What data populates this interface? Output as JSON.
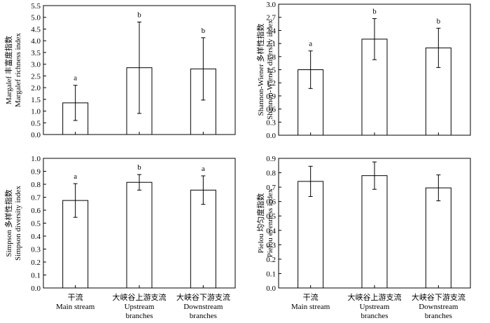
{
  "chart_data": [
    {
      "type": "bar",
      "categories": [
        {
          "zh": "干流",
          "en": [
            "Main stream"
          ]
        },
        {
          "zh": "大峡谷上游支流",
          "en": [
            "Upstream",
            "branches"
          ]
        },
        {
          "zh": "大峡谷下游支流",
          "en": [
            "Downstream",
            "branches"
          ]
        }
      ],
      "ylabel": [
        "Margalef 丰富度指数",
        "Margalef richness index"
      ],
      "ylim": [
        0,
        5.5
      ],
      "yticks": [
        "0.0",
        "0.5",
        "1.0",
        "1.5",
        "2.0",
        "2.5",
        "3.0",
        "3.5",
        "4.0",
        "4.5",
        "5.0",
        "5.5"
      ],
      "values": [
        1.35,
        2.85,
        2.8
      ],
      "errors": [
        0.75,
        1.95,
        1.33
      ],
      "significance": [
        "a",
        "b",
        "b"
      ],
      "show_xlabels": false
    },
    {
      "type": "bar",
      "categories": [
        {
          "zh": "干流",
          "en": [
            "Main stream"
          ]
        },
        {
          "zh": "大峡谷上游支流",
          "en": [
            "Upstream",
            "branches"
          ]
        },
        {
          "zh": "大峡谷下游支流",
          "en": [
            "Downstream",
            "branches"
          ]
        }
      ],
      "ylabel": [
        "Shannon-Wiener 多样性指数",
        "Shannon-Wiener diversity index"
      ],
      "ylim": [
        0,
        3.0
      ],
      "yticks": [
        "0.0",
        "0.3",
        "0.6",
        "0.9",
        "1.2",
        "1.5",
        "1.8",
        "2.1",
        "2.4",
        "2.7",
        "3.0"
      ],
      "values": [
        1.5,
        2.2,
        2.0
      ],
      "errors": [
        0.43,
        0.47,
        0.45
      ],
      "significance": [
        "a",
        "b",
        "b"
      ],
      "show_xlabels": false
    },
    {
      "type": "bar",
      "categories": [
        {
          "zh": "干流",
          "en": [
            "Main stream"
          ]
        },
        {
          "zh": "大峡谷上游支流",
          "en": [
            "Upstream",
            "branches"
          ]
        },
        {
          "zh": "大峡谷下游支流",
          "en": [
            "Downstream",
            "branches"
          ]
        }
      ],
      "ylabel": [
        "Simpson 多样性指数",
        "Simpson diversity index"
      ],
      "ylim": [
        0,
        1.0
      ],
      "yticks": [
        "0.0",
        "0.1",
        "0.2",
        "0.3",
        "0.4",
        "0.5",
        "0.6",
        "0.7",
        "0.8",
        "0.9",
        "1.0"
      ],
      "values": [
        0.675,
        0.815,
        0.755
      ],
      "errors": [
        0.13,
        0.06,
        0.11
      ],
      "significance": [
        "a",
        "b",
        "a"
      ],
      "show_xlabels": true
    },
    {
      "type": "bar",
      "categories": [
        {
          "zh": "干流",
          "en": [
            "Main stream"
          ]
        },
        {
          "zh": "大峡谷上游支流",
          "en": [
            "Upstream",
            "branches"
          ]
        },
        {
          "zh": "大峡谷下游支流",
          "en": [
            "Downstream",
            "branches"
          ]
        }
      ],
      "ylabel": [
        "Pielou 均匀度指数",
        "Pielou evenness index"
      ],
      "ylim": [
        0,
        0.9
      ],
      "yticks": [
        "0.0",
        "0.1",
        "0.2",
        "0.3",
        "0.4",
        "0.5",
        "0.6",
        "0.7",
        "0.8",
        "0.9"
      ],
      "values": [
        0.74,
        0.78,
        0.695
      ],
      "errors": [
        0.105,
        0.095,
        0.09
      ],
      "significance": [
        "",
        "",
        ""
      ],
      "show_xlabels": true
    }
  ]
}
